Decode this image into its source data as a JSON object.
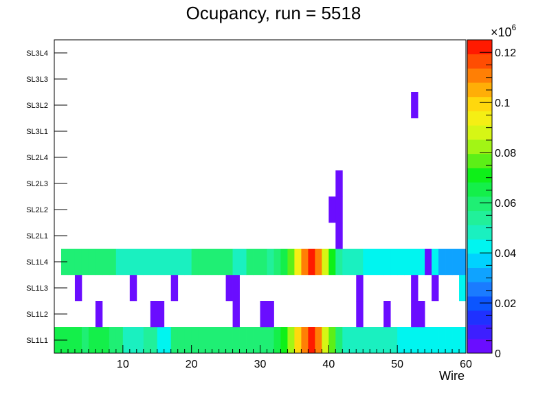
{
  "chart_data": {
    "type": "heatmap",
    "title": "Ocupancy, run = 5518",
    "xlabel": "Wire",
    "ylabel": "",
    "xlim": [
      0,
      60
    ],
    "x_ticks": [
      "10",
      "20",
      "30",
      "40",
      "50",
      "60"
    ],
    "x_tick_values": [
      10,
      20,
      30,
      40,
      50,
      60
    ],
    "y_categories": [
      "SL1L1",
      "SL1L2",
      "SL1L3",
      "SL1L4",
      "SL2L1",
      "SL2L2",
      "SL2L3",
      "SL2L4",
      "SL3L1",
      "SL3L2",
      "SL3L3",
      "SL3L4"
    ],
    "colorbar": {
      "exponent_label": "×10",
      "exponent_power": "6",
      "zlim": [
        0,
        125000
      ],
      "tick_labels": [
        "0",
        "0.02",
        "0.04",
        "0.06",
        "0.08",
        "0.1",
        "0.12"
      ],
      "tick_values": [
        0,
        20000,
        40000,
        60000,
        80000,
        100000,
        120000
      ],
      "palette": [
        "#6a0dff",
        "#3d1fff",
        "#1f31ff",
        "#0b55ff",
        "#1a7bff",
        "#0fa3ff",
        "#00d2ff",
        "#00f5f0",
        "#1af0c0",
        "#21f09a",
        "#1fef74",
        "#14ef4a",
        "#0ef018",
        "#5cef17",
        "#a2f515",
        "#d6f615",
        "#f5ef14",
        "#ffd80d",
        "#ffae07",
        "#ff7f05",
        "#ff4d02",
        "#ff1a00"
      ]
    },
    "rows": [
      {
        "layer": "SL1L1",
        "values": [
          63000,
          63000,
          63000,
          63000,
          58000,
          67000,
          67000,
          67000,
          60000,
          60000,
          50000,
          50000,
          50000,
          55000,
          55000,
          45000,
          45000,
          62000,
          62000,
          62000,
          62000,
          62000,
          62000,
          62000,
          62000,
          62000,
          62000,
          62000,
          62000,
          62000,
          62000,
          62000,
          67000,
          71000,
          83000,
          100000,
          108000,
          123000,
          108000,
          88000,
          76000,
          60000,
          50000,
          50000,
          50000,
          50000,
          50000,
          50000,
          50000,
          50000,
          42000,
          42000,
          42000,
          42000,
          42000,
          42000,
          42000,
          42000,
          42000,
          42000
        ]
      },
      {
        "layer": "SL1L2",
        "values": [
          0,
          0,
          0,
          0,
          0,
          0,
          3000,
          0,
          0,
          0,
          0,
          0,
          0,
          0,
          3000,
          3000,
          0,
          0,
          0,
          0,
          0,
          0,
          0,
          0,
          0,
          0,
          3000,
          0,
          0,
          0,
          3000,
          3000,
          0,
          0,
          0,
          0,
          0,
          0,
          0,
          0,
          0,
          0,
          0,
          0,
          3000,
          0,
          0,
          0,
          3000,
          0,
          0,
          0,
          3000,
          3000,
          0,
          0,
          0,
          0,
          0,
          0
        ]
      },
      {
        "layer": "SL1L3",
        "values": [
          0,
          0,
          0,
          3000,
          0,
          0,
          0,
          0,
          0,
          0,
          0,
          3000,
          0,
          0,
          0,
          0,
          0,
          3000,
          0,
          0,
          0,
          0,
          0,
          0,
          0,
          3000,
          3000,
          0,
          0,
          0,
          0,
          0,
          0,
          0,
          0,
          0,
          0,
          0,
          0,
          0,
          0,
          0,
          0,
          0,
          3000,
          0,
          0,
          0,
          0,
          0,
          0,
          0,
          3000,
          0,
          0,
          3000,
          0,
          0,
          0,
          45000
        ]
      },
      {
        "layer": "SL1L4",
        "values": [
          0,
          60000,
          60000,
          60000,
          60000,
          60000,
          60000,
          60000,
          60000,
          50000,
          50000,
          50000,
          50000,
          50000,
          50000,
          50000,
          50000,
          50000,
          50000,
          50000,
          60000,
          60000,
          60000,
          60000,
          60000,
          60000,
          50000,
          50000,
          60000,
          60000,
          60000,
          55000,
          62000,
          67000,
          78000,
          95000,
          108000,
          123000,
          108000,
          88000,
          72000,
          55000,
          50000,
          50000,
          50000,
          43000,
          43000,
          43000,
          43000,
          43000,
          43000,
          43000,
          43000,
          43000,
          3000,
          40000,
          32000,
          32000,
          32000,
          32000
        ]
      },
      {
        "layer": "SL2L1",
        "values": [
          0,
          0,
          0,
          0,
          0,
          0,
          0,
          0,
          0,
          0,
          0,
          0,
          0,
          0,
          0,
          0,
          0,
          0,
          0,
          0,
          0,
          0,
          0,
          0,
          0,
          0,
          0,
          0,
          0,
          0,
          0,
          0,
          0,
          0,
          0,
          0,
          0,
          0,
          0,
          0,
          0,
          3000,
          0,
          0,
          0,
          0,
          0,
          0,
          0,
          0,
          0,
          0,
          0,
          0,
          0,
          0,
          0,
          0,
          0,
          0
        ]
      },
      {
        "layer": "SL2L2",
        "values": [
          0,
          0,
          0,
          0,
          0,
          0,
          0,
          0,
          0,
          0,
          0,
          0,
          0,
          0,
          0,
          0,
          0,
          0,
          0,
          0,
          0,
          0,
          0,
          0,
          0,
          0,
          0,
          0,
          0,
          0,
          0,
          0,
          0,
          0,
          0,
          0,
          0,
          0,
          0,
          0,
          3000,
          3000,
          0,
          0,
          0,
          0,
          0,
          0,
          0,
          0,
          0,
          0,
          0,
          0,
          0,
          0,
          0,
          0,
          0,
          0
        ]
      },
      {
        "layer": "SL2L3",
        "values": [
          0,
          0,
          0,
          0,
          0,
          0,
          0,
          0,
          0,
          0,
          0,
          0,
          0,
          0,
          0,
          0,
          0,
          0,
          0,
          0,
          0,
          0,
          0,
          0,
          0,
          0,
          0,
          0,
          0,
          0,
          0,
          0,
          0,
          0,
          0,
          0,
          0,
          0,
          0,
          0,
          0,
          3000,
          0,
          0,
          0,
          0,
          0,
          0,
          0,
          0,
          0,
          0,
          0,
          0,
          0,
          0,
          0,
          0,
          0,
          0
        ]
      },
      {
        "layer": "SL2L4",
        "values": [
          0,
          0,
          0,
          0,
          0,
          0,
          0,
          0,
          0,
          0,
          0,
          0,
          0,
          0,
          0,
          0,
          0,
          0,
          0,
          0,
          0,
          0,
          0,
          0,
          0,
          0,
          0,
          0,
          0,
          0,
          0,
          0,
          0,
          0,
          0,
          0,
          0,
          0,
          0,
          0,
          0,
          0,
          0,
          0,
          0,
          0,
          0,
          0,
          0,
          0,
          0,
          0,
          0,
          0,
          0,
          0,
          0,
          0,
          0,
          0
        ]
      },
      {
        "layer": "SL3L1",
        "values": [
          0,
          0,
          0,
          0,
          0,
          0,
          0,
          0,
          0,
          0,
          0,
          0,
          0,
          0,
          0,
          0,
          0,
          0,
          0,
          0,
          0,
          0,
          0,
          0,
          0,
          0,
          0,
          0,
          0,
          0,
          0,
          0,
          0,
          0,
          0,
          0,
          0,
          0,
          0,
          0,
          0,
          0,
          0,
          0,
          0,
          0,
          0,
          0,
          0,
          0,
          0,
          0,
          0,
          0,
          0,
          0,
          0,
          0,
          0,
          0
        ]
      },
      {
        "layer": "SL3L2",
        "values": [
          0,
          0,
          0,
          0,
          0,
          0,
          0,
          0,
          0,
          0,
          0,
          0,
          0,
          0,
          0,
          0,
          0,
          0,
          0,
          0,
          0,
          0,
          0,
          0,
          0,
          0,
          0,
          0,
          0,
          0,
          0,
          0,
          0,
          0,
          0,
          0,
          0,
          0,
          0,
          0,
          0,
          0,
          0,
          0,
          0,
          0,
          0,
          0,
          0,
          0,
          0,
          0,
          3000,
          0,
          0,
          0,
          0,
          0,
          0,
          0
        ]
      },
      {
        "layer": "SL3L3",
        "values": [
          0,
          0,
          0,
          0,
          0,
          0,
          0,
          0,
          0,
          0,
          0,
          0,
          0,
          0,
          0,
          0,
          0,
          0,
          0,
          0,
          0,
          0,
          0,
          0,
          0,
          0,
          0,
          0,
          0,
          0,
          0,
          0,
          0,
          0,
          0,
          0,
          0,
          0,
          0,
          0,
          0,
          0,
          0,
          0,
          0,
          0,
          0,
          0,
          0,
          0,
          0,
          0,
          0,
          0,
          0,
          0,
          0,
          0,
          0,
          0
        ]
      },
      {
        "layer": "SL3L4",
        "values": [
          0,
          0,
          0,
          0,
          0,
          0,
          0,
          0,
          0,
          0,
          0,
          0,
          0,
          0,
          0,
          0,
          0,
          0,
          0,
          0,
          0,
          0,
          0,
          0,
          0,
          0,
          0,
          0,
          0,
          0,
          0,
          0,
          0,
          0,
          0,
          0,
          0,
          0,
          0,
          0,
          0,
          0,
          0,
          0,
          0,
          0,
          0,
          0,
          0,
          0,
          0,
          0,
          0,
          0,
          0,
          0,
          0,
          0,
          0,
          0
        ]
      }
    ]
  }
}
